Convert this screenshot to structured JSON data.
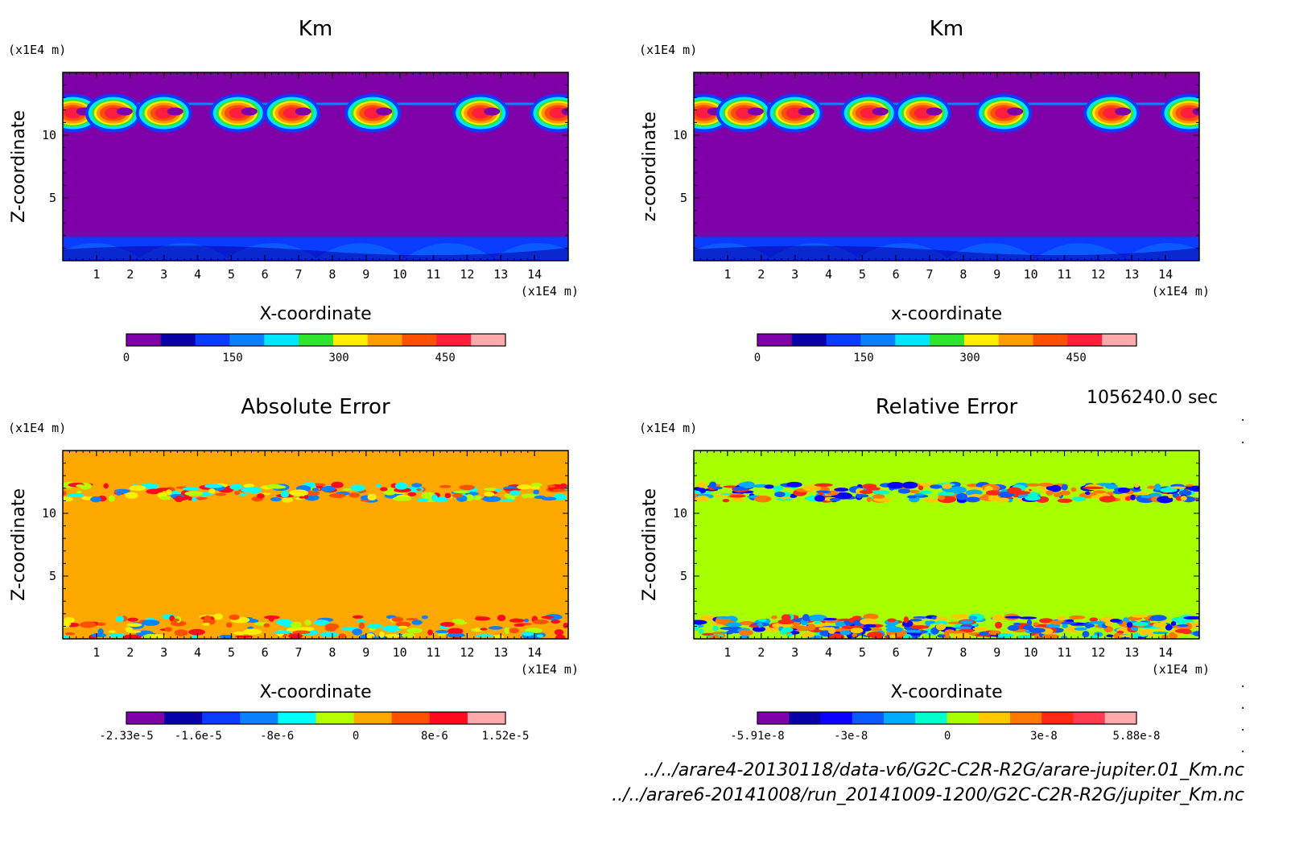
{
  "timestamp": "1056240.0 sec",
  "files": [
    "../../arare4-20130118/data-v6/G2C-C2R-R2G/arare-jupiter.01_Km.nc",
    "../../arare6-20141008/run_20141009-1200/G2C-C2R-R2G/jupiter_Km.nc"
  ],
  "chart_data": [
    {
      "type": "heatmap",
      "title": "Km",
      "xlabel": "X-coordinate",
      "ylabel": "Z-coordinate",
      "xunit": "(x1E4 m)",
      "yunit": "(x1E4 m)",
      "xlim": [
        0,
        15
      ],
      "ylim": [
        0,
        15
      ],
      "xticks": [
        "1",
        "2",
        "3",
        "4",
        "5",
        "6",
        "7",
        "8",
        "9",
        "10",
        "11",
        "12",
        "13",
        "14"
      ],
      "yticks": [
        "5",
        "10"
      ],
      "background_color": "#7f00a8",
      "colorbar": {
        "colors": [
          "#7f00a8",
          "#0a00a8",
          "#0a3cff",
          "#0a82ff",
          "#00e6ff",
          "#2ee62e",
          "#ffee00",
          "#ff9d00",
          "#ff5000",
          "#ff1e3c",
          "#ffaaaa"
        ],
        "tick_labels": [
          "0",
          "150",
          "300",
          "450"
        ]
      }
    },
    {
      "type": "heatmap",
      "title": "Km",
      "xlabel": "x-coordinate",
      "ylabel": "z-coordinate",
      "xunit": "(x1E4 m)",
      "yunit": "(x1E4 m)",
      "xlim": [
        0,
        15
      ],
      "ylim": [
        0,
        15
      ],
      "xticks": [
        "1",
        "2",
        "3",
        "4",
        "5",
        "6",
        "7",
        "8",
        "9",
        "10",
        "11",
        "12",
        "13",
        "14"
      ],
      "yticks": [
        "5",
        "10"
      ],
      "background_color": "#7f00a8",
      "colorbar": {
        "colors": [
          "#7f00a8",
          "#0a00a8",
          "#0a3cff",
          "#0a82ff",
          "#00e6ff",
          "#2ee62e",
          "#ffee00",
          "#ff9d00",
          "#ff5000",
          "#ff1e3c",
          "#ffaaaa"
        ],
        "tick_labels": [
          "0",
          "150",
          "300",
          "450"
        ]
      }
    },
    {
      "type": "heatmap",
      "title": "Absolute Error",
      "xlabel": "X-coordinate",
      "ylabel": "Z-coordinate",
      "xunit": "(x1E4 m)",
      "yunit": "(x1E4 m)",
      "xlim": [
        0,
        15
      ],
      "ylim": [
        0,
        15
      ],
      "xticks": [
        "1",
        "2",
        "3",
        "4",
        "5",
        "6",
        "7",
        "8",
        "9",
        "10",
        "11",
        "12",
        "13",
        "14"
      ],
      "yticks": [
        "5",
        "10"
      ],
      "background_color": "#ffa800",
      "colorbar": {
        "colors": [
          "#7f00a8",
          "#0a00a8",
          "#0a3cff",
          "#0a82ff",
          "#00ffff",
          "#b4ff00",
          "#ffa800",
          "#ff5000",
          "#ff0a1e",
          "#ffaaaa"
        ],
        "tick_labels": [
          "-2.33e-5",
          "-1.6e-5",
          "-8e-6",
          "0",
          "8e-6",
          "1.52e-5"
        ]
      }
    },
    {
      "type": "heatmap",
      "title": "Relative Error",
      "xlabel": "X-coordinate",
      "ylabel": "Z-coordinate",
      "xunit": "(x1E4 m)",
      "yunit": "(x1E4 m)",
      "xlim": [
        0,
        15
      ],
      "ylim": [
        0,
        15
      ],
      "xticks": [
        "1",
        "2",
        "3",
        "4",
        "5",
        "6",
        "7",
        "8",
        "9",
        "10",
        "11",
        "12",
        "13",
        "14"
      ],
      "yticks": [
        "5",
        "10"
      ],
      "background_color": "#a8ff00",
      "colorbar": {
        "colors": [
          "#7f00a8",
          "#0a00a8",
          "#0a00ff",
          "#0a5aff",
          "#00aaff",
          "#00ffcc",
          "#a8ff00",
          "#ffc800",
          "#ff7800",
          "#ff2814",
          "#ff3c50",
          "#ffaaaa"
        ],
        "tick_labels": [
          "-5.91e-8",
          "-3e-8",
          "0",
          "3e-8",
          "5.88e-8"
        ]
      }
    }
  ]
}
